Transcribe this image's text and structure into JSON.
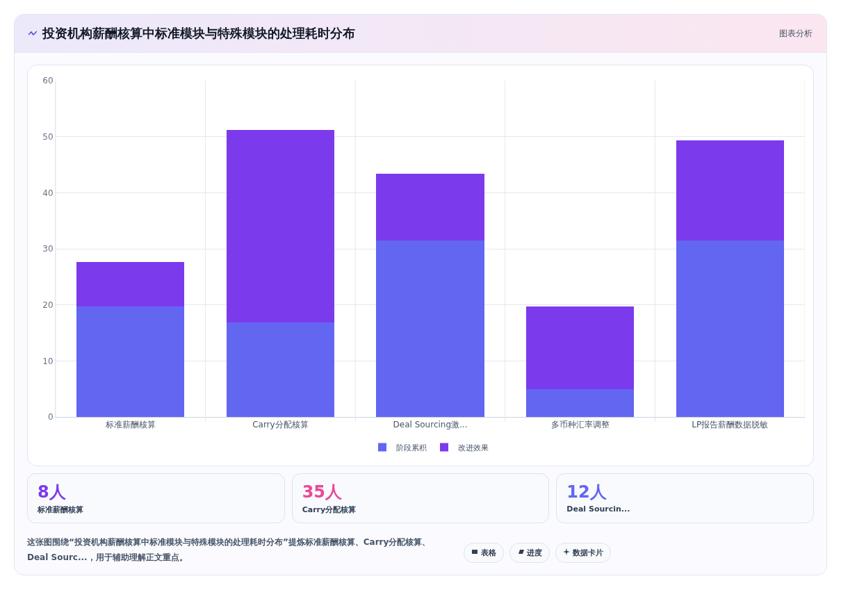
{
  "chart_data": {
    "type": "bar",
    "title": "投资机构薪酬核算中标准模块与特殊模块的处理耗时分布",
    "stacked": true,
    "categories": [
      "标准薪酬核算",
      "Carry分配核算",
      "Deal Sourcing激...",
      "多币种汇率调整",
      "LP报告薪酬数据脱敏"
    ],
    "series": [
      {
        "name": "阶段累积",
        "color": "#6366f1",
        "values": [
          19.7,
          16.8,
          31.5,
          5.0,
          31.5
        ]
      },
      {
        "name": "改进效果",
        "color": "#7c3aed",
        "values": [
          7.9,
          34.4,
          11.9,
          14.7,
          17.8
        ]
      }
    ],
    "ylim": [
      0,
      60
    ],
    "yticks": [
      0,
      10,
      20,
      30,
      40,
      50,
      60
    ],
    "grid": true,
    "legend": "bottom",
    "annotations": [
      "图表分析",
      "8人",
      "标准薪酬核算",
      "35人",
      "Carry分配核算",
      "12人",
      "Deal Sourcin...",
      "这张图围绕“投资机构薪酬核算中标准模块与特殊模块的处理耗时分布”提炼标准薪酬核算、Carry分配核算、Deal Sourc...，用于辅助理解正文重点。",
      "表格",
      "进度",
      "数据卡片"
    ]
  }
}
